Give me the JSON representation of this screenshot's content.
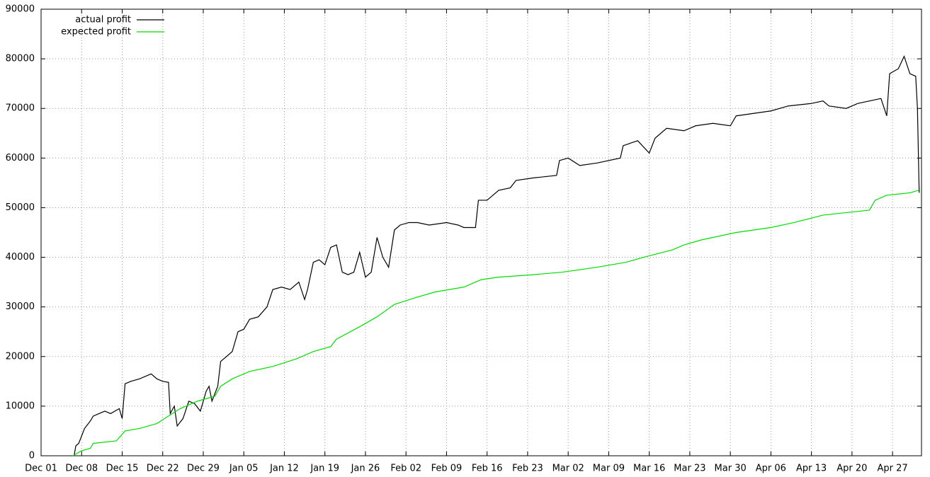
{
  "chart_data": {
    "type": "line",
    "grid": true,
    "legend": "top-left",
    "xlim": [
      0,
      152
    ],
    "ylim": [
      0,
      90000
    ],
    "xticks": [
      {
        "value": 0,
        "label": "Dec 01"
      },
      {
        "value": 7,
        "label": "Dec 08"
      },
      {
        "value": 14,
        "label": "Dec 15"
      },
      {
        "value": 21,
        "label": "Dec 22"
      },
      {
        "value": 28,
        "label": "Dec 29"
      },
      {
        "value": 35,
        "label": "Jan 05"
      },
      {
        "value": 42,
        "label": "Jan 12"
      },
      {
        "value": 49,
        "label": "Jan 19"
      },
      {
        "value": 56,
        "label": "Jan 26"
      },
      {
        "value": 63,
        "label": "Feb 02"
      },
      {
        "value": 70,
        "label": "Feb 09"
      },
      {
        "value": 77,
        "label": "Feb 16"
      },
      {
        "value": 84,
        "label": "Feb 23"
      },
      {
        "value": 91,
        "label": "Mar 02"
      },
      {
        "value": 98,
        "label": "Mar 09"
      },
      {
        "value": 105,
        "label": "Mar 16"
      },
      {
        "value": 112,
        "label": "Mar 23"
      },
      {
        "value": 119,
        "label": "Mar 30"
      },
      {
        "value": 126,
        "label": "Apr 06"
      },
      {
        "value": 133,
        "label": "Apr 13"
      },
      {
        "value": 140,
        "label": "Apr 20"
      },
      {
        "value": 147,
        "label": "Apr 27"
      }
    ],
    "yticks": [
      0,
      10000,
      20000,
      30000,
      40000,
      50000,
      60000,
      70000,
      80000,
      90000
    ],
    "series": [
      {
        "name": "actual profit",
        "color": "#000000",
        "x": [
          5.7,
          6,
          6.5,
          7.5,
          8.5,
          9,
          10,
          11,
          12,
          13.5,
          14,
          14.5,
          15.5,
          17,
          19,
          20,
          21,
          22,
          22.3,
          23,
          23.5,
          24.5,
          25.5,
          26.5,
          27.5,
          28.5,
          29,
          29.5,
          30.5,
          31,
          32,
          33,
          34,
          35,
          36,
          37.5,
          39,
          40,
          41.5,
          43,
          44.5,
          45.5,
          46,
          47,
          48,
          49,
          50,
          51,
          52,
          53,
          54,
          55,
          56,
          57,
          58,
          59,
          60,
          61,
          62,
          63.5,
          65,
          67,
          70,
          72,
          73,
          75,
          75.5,
          77,
          79,
          81,
          82,
          85,
          89,
          89.5,
          91,
          93,
          96,
          100,
          100.5,
          103,
          105,
          106,
          108,
          111,
          113,
          116,
          119,
          120,
          123,
          126,
          129,
          133,
          135,
          136,
          139,
          141,
          145,
          146,
          146.5,
          148,
          149,
          150,
          151,
          151.3,
          151.6
        ],
        "values": [
          0,
          2000,
          2500,
          5500,
          7000,
          8000,
          8500,
          9000,
          8500,
          9500,
          7500,
          14500,
          15000,
          15500,
          16500,
          15500,
          15000,
          14800,
          8500,
          10000,
          6000,
          7500,
          11000,
          10500,
          9000,
          13000,
          14000,
          11000,
          14000,
          19000,
          20000,
          21000,
          25000,
          25500,
          27500,
          28000,
          30000,
          33500,
          34000,
          33500,
          35000,
          31500,
          33500,
          39000,
          39500,
          38500,
          42000,
          42500,
          37000,
          36500,
          37000,
          41000,
          36000,
          37000,
          44000,
          40000,
          38000,
          45500,
          46500,
          47000,
          47000,
          46500,
          47000,
          46500,
          46000,
          46000,
          51500,
          51500,
          53500,
          54000,
          55500,
          56000,
          56500,
          59500,
          60000,
          58500,
          59000,
          60000,
          62500,
          63500,
          61000,
          64000,
          66000,
          65500,
          66500,
          67000,
          66500,
          68500,
          69000,
          69500,
          70500,
          71000,
          71500,
          70500,
          70000,
          71000,
          72000,
          68500,
          77000,
          78000,
          80500,
          77000,
          76500,
          70000,
          53000
        ]
      },
      {
        "name": "expected profit",
        "color": "#00dd00",
        "x": [
          5.5,
          7,
          8.5,
          9,
          13,
          14.5,
          17,
          20,
          22,
          24,
          27,
          30,
          31,
          33,
          36,
          40,
          44,
          47,
          50,
          51,
          55,
          58,
          61,
          65,
          68,
          73,
          76,
          79,
          85,
          90,
          96,
          101,
          104,
          109,
          111,
          114,
          120,
          126,
          130,
          135,
          139,
          143,
          144,
          146,
          150,
          151.5
        ],
        "values": [
          0,
          1000,
          1500,
          2500,
          3000,
          5000,
          5500,
          6500,
          8000,
          9500,
          11000,
          12000,
          14000,
          15500,
          17000,
          18000,
          19500,
          21000,
          22000,
          23500,
          26000,
          28000,
          30500,
          32000,
          33000,
          34000,
          35500,
          36000,
          36500,
          37000,
          38000,
          39000,
          40000,
          41500,
          42500,
          43500,
          45000,
          46000,
          47000,
          48500,
          49000,
          49500,
          51500,
          52500,
          53000,
          53500
        ]
      }
    ]
  }
}
